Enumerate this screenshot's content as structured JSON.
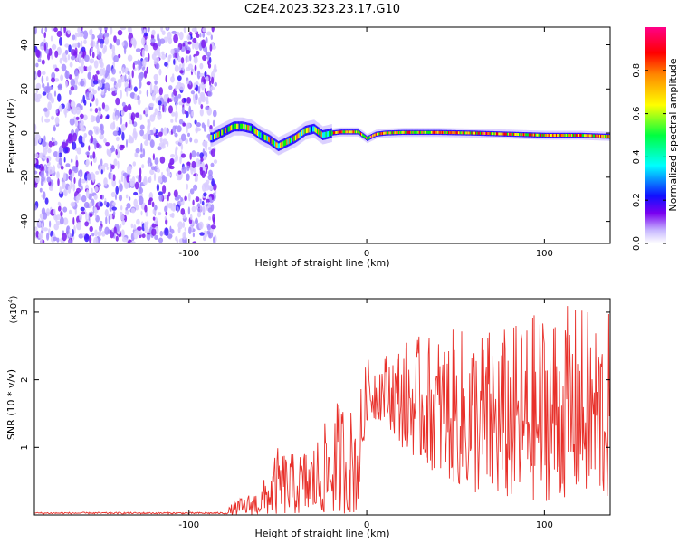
{
  "title": "C2E4.2023.323.23.17.G10",
  "chart_data": [
    {
      "type": "heatmap",
      "xlabel": "Height of straight line (km)",
      "ylabel": "Frequency (Hz)",
      "xlim": [
        -187,
        137
      ],
      "ylim": [
        -50,
        48
      ],
      "x_ticks": [
        -100,
        0,
        100
      ],
      "y_ticks": [
        -40,
        -20,
        0,
        20,
        40
      ],
      "colorbar": {
        "label": "Normalized spectral amplitude",
        "ticks": [
          0.0,
          0.2,
          0.4,
          0.6,
          0.8
        ],
        "range": [
          0,
          1
        ],
        "colormap": [
          "#ffffff",
          "#b0a0ff",
          "#6600ee",
          "#0000ff",
          "#00ffff",
          "#00ff00",
          "#ffff00",
          "#ff8800",
          "#ff0000",
          "#ff00aa"
        ]
      },
      "noise_region_x": [
        -187,
        -87
      ],
      "signal_trace": {
        "x": [
          -87,
          -80,
          -75,
          -70,
          -65,
          -60,
          -55,
          -50,
          -45,
          -40,
          -35,
          -30,
          -25,
          -20,
          -15,
          -10,
          -5,
          0,
          5,
          10,
          20,
          40,
          60,
          80,
          100,
          120,
          137
        ],
        "y": [
          -2,
          1,
          3,
          3,
          2,
          -1,
          -3,
          -6,
          -4,
          -2,
          1,
          2,
          -1,
          0,
          0.5,
          0.5,
          0.5,
          -2.5,
          -0.5,
          0,
          0.3,
          0.3,
          0,
          -0.5,
          -1,
          -1,
          -1.5
        ]
      }
    },
    {
      "type": "line",
      "xlabel": "Height of straight line (km)",
      "ylabel": "SNR (10 * v/v)",
      "y_scale_label": "(x10",
      "y_scale_exp": "4",
      "xlim": [
        -187,
        137
      ],
      "ylim": [
        0,
        32000
      ],
      "x_ticks": [
        -100,
        0,
        100
      ],
      "y_ticks": [
        10000,
        20000,
        30000
      ],
      "y_tick_labels": [
        "1",
        "2",
        "3"
      ],
      "series": [
        {
          "color": "#e8302a",
          "envelope": {
            "x": [
              -187,
              -80,
              -75,
              -60,
              -50,
              -40,
              -30,
              -20,
              -15,
              -10,
              -5,
              0,
              10,
              20,
              40,
              60,
              80,
              100,
              120,
              137
            ],
            "low": [
              0,
              0,
              0,
              0,
              0,
              100,
              100,
              200,
              200,
              200,
              200,
              14000,
              14000,
              10000,
              6000,
              3000,
              2000,
              2000,
              3000,
              2000
            ],
            "high": [
              300,
              300,
              2000,
              4000,
              10000,
              9000,
              11000,
              15000,
              18000,
              16000,
              17000,
              23000,
              24000,
              26000,
              27000,
              28000,
              28000,
              31000,
              31000,
              30000
            ]
          }
        }
      ]
    }
  ]
}
